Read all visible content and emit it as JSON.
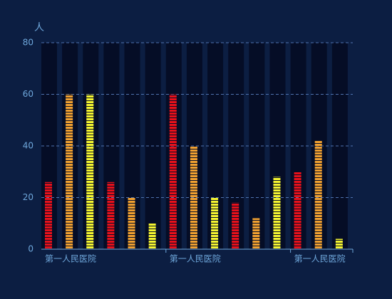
{
  "chart_data": {
    "type": "bar",
    "y_axis_label": "人",
    "categories": [
      "第一人民医院",
      null,
      null,
      null,
      null,
      null,
      "第一人民医院",
      null,
      null,
      null,
      null,
      null,
      "第一人民医院",
      null,
      null
    ],
    "values": [
      26,
      60,
      60,
      26,
      20,
      10,
      60,
      40,
      20,
      18,
      12,
      28,
      30,
      42,
      4
    ],
    "colors": [
      "#e8101a",
      "#f0a030",
      "#f5f530",
      "#e8101a",
      "#f0a030",
      "#f5f530",
      "#e8101a",
      "#f0a030",
      "#f5f530",
      "#e8101a",
      "#f0a030",
      "#f5f530",
      "#e8101a",
      "#f0a030",
      "#f5f530"
    ],
    "ylim": [
      0,
      80
    ],
    "yticks": [
      0,
      20,
      40,
      60,
      80
    ],
    "grid": true
  }
}
